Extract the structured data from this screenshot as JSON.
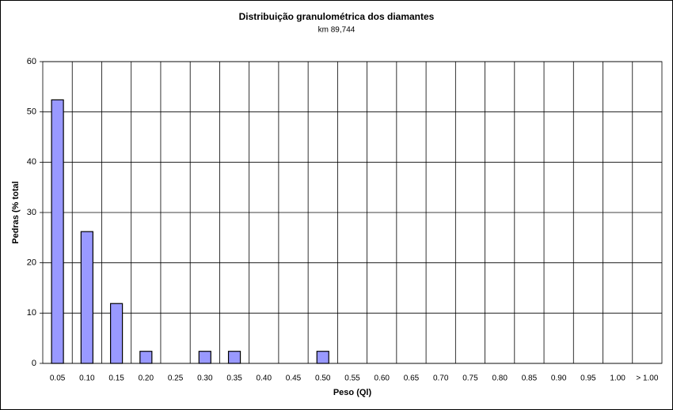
{
  "chart_data": {
    "type": "bar",
    "title": "Distribuição granulométrica dos diamantes",
    "subtitle": "km 89,744",
    "x_label": "Peso (Ql)",
    "y_label": "Pedras (% total",
    "categories": [
      "0.05",
      "0.10",
      "0.15",
      "0.20",
      "0.25",
      "0.30",
      "0.35",
      "0.40",
      "0.45",
      "0.50",
      "0.55",
      "0.60",
      "0.65",
      "0.70",
      "0.75",
      "0.80",
      "0.85",
      "0.90",
      "0.95",
      "1.00",
      "> 1.00"
    ],
    "values": [
      52.4,
      26.2,
      11.9,
      2.4,
      0,
      2.4,
      2.4,
      0,
      0,
      2.4,
      0,
      0,
      0,
      0,
      0,
      0,
      0,
      0,
      0,
      0,
      0
    ],
    "color": "#9999ff",
    "ylim": [
      0,
      60
    ],
    "yticks": [
      0,
      10,
      20,
      30,
      40,
      50,
      60
    ],
    "grid": true
  }
}
